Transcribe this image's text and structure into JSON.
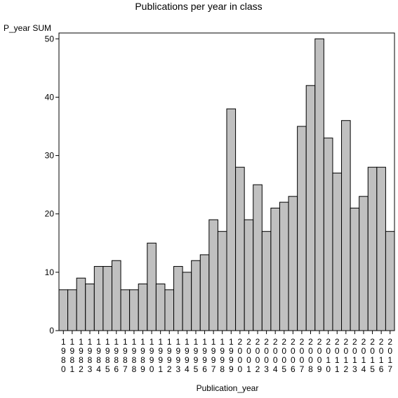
{
  "chart_data": {
    "type": "bar",
    "title": "Publications per year in class",
    "xlabel": "Publication_year",
    "ylabel": "P_year SUM",
    "ylim": [
      0,
      51
    ],
    "yticks": [
      0,
      10,
      20,
      30,
      40,
      50
    ],
    "grid": false,
    "categories": [
      "1980",
      "1981",
      "1982",
      "1983",
      "1984",
      "1985",
      "1986",
      "1987",
      "1988",
      "1989",
      "1990",
      "1991",
      "1992",
      "1993",
      "1994",
      "1995",
      "1996",
      "1997",
      "1998",
      "1999",
      "2000",
      "2001",
      "2002",
      "2003",
      "2004",
      "2005",
      "2006",
      "2007",
      "2008",
      "2009",
      "2010",
      "2011",
      "2012",
      "2013",
      "2014",
      "2015",
      "2016",
      "2017"
    ],
    "values": [
      7,
      7,
      9,
      8,
      11,
      11,
      12,
      7,
      7,
      8,
      15,
      8,
      7,
      11,
      10,
      12,
      13,
      19,
      17,
      38,
      28,
      19,
      25,
      17,
      21,
      22,
      23,
      35,
      42,
      50,
      33,
      27,
      36,
      21,
      23,
      28,
      28,
      17
    ],
    "colors": {
      "bar_fill": "#c0c0c0",
      "bar_stroke": "#000000",
      "axis": "#000000"
    }
  }
}
